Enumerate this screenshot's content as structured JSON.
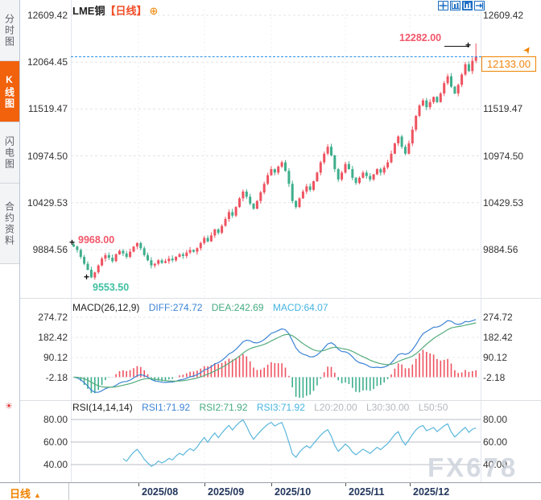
{
  "watermark": "FX678",
  "header": {
    "symbol": "LME铜",
    "period_tag": "【日线】",
    "plus_icon": "⊕"
  },
  "sidebar": {
    "tabs": [
      {
        "label": "分时图",
        "selected": false
      },
      {
        "label": "K线图",
        "selected": true
      },
      {
        "label": "闪电图",
        "selected": false
      },
      {
        "label": "合约资料",
        "selected": false
      }
    ]
  },
  "toolbar": {
    "icons": [
      "crosshair-move",
      "scale-chart",
      "scale-chart-active",
      "exit-chart"
    ]
  },
  "main_chart": {
    "left_axis": [
      "12609.42",
      "12064.45",
      "11519.47",
      "10974.50",
      "10429.53",
      "9884.56"
    ],
    "right_axis": [
      "12609.42",
      "12064.45",
      "11519.47",
      "10974.50",
      "10429.53",
      "9884.56"
    ]
  },
  "annotations": {
    "period_high": "12282.00",
    "start_high": "9968.00",
    "start_low": "9553.50",
    "last_price": "12133.00"
  },
  "macd": {
    "title": "MACD(26,12,9)",
    "diff_label": "DIFF:274.72",
    "dea_label": "DEA:242.69",
    "macd_label": "MACD:64.07",
    "axis": [
      "274.72",
      "182.42",
      "90.12",
      "-2.18"
    ]
  },
  "rsi": {
    "title": "RSI(14,14,14)",
    "rsi1_label": "RSI1:71.92",
    "rsi2_label": "RSI2:71.92",
    "rsi3_label": "RSI3:71.92",
    "l20_label": "L20:20.00",
    "l30_label": "L30:30.00",
    "l50_label": "L50:50",
    "axis": [
      "80.00",
      "60.00",
      "40.00"
    ]
  },
  "bottom_bar": {
    "period": "日线",
    "arrow": "▲",
    "months": [
      "2025/08",
      "2025/09",
      "2025/10",
      "2025/11",
      "2025/12"
    ]
  },
  "colors": {
    "up_candle": "#ee5360",
    "down_candle": "#3eae8c",
    "diff_line": "#3d84d6",
    "dea_line": "#56ad7c",
    "rsi_line": "#5ab7dc",
    "accent_orange": "#f08300",
    "tab_selected": "#f2610c",
    "last_price_line": "#2e8fe6",
    "high_label": "#f2566a",
    "low_label": "#3fbfa0"
  },
  "chart_data": {
    "type": "candlestick",
    "title": "LME铜 日线 with MACD(26,12,9) and RSI(14,14,14)",
    "x_months": [
      "2025/08",
      "2025/09",
      "2025/10",
      "2025/11",
      "2025/12"
    ],
    "y_ticks": [
      12609.42,
      12064.45,
      11519.47,
      10974.5,
      10429.53,
      9884.56
    ],
    "last_price": 12133.0,
    "period_high": 12282.0,
    "early_high": 9968.0,
    "early_low": 9553.5,
    "first_open": 9945,
    "closes": [
      9920,
      9880,
      9800,
      9720,
      9650,
      9560,
      9620,
      9700,
      9780,
      9820,
      9790,
      9750,
      9830,
      9870,
      9840,
      9800,
      9860,
      9920,
      9960,
      9900,
      9820,
      9760,
      9700,
      9720,
      9760,
      9730,
      9750,
      9780,
      9760,
      9800,
      9830,
      9810,
      9850,
      9880,
      9860,
      9900,
      9960,
      10020,
      9980,
      10050,
      10120,
      10080,
      10160,
      10240,
      10320,
      10280,
      10380,
      10480,
      10560,
      10500,
      10420,
      10360,
      10450,
      10550,
      10650,
      10750,
      10820,
      10780,
      10850,
      10900,
      10800,
      10650,
      10450,
      10380,
      10480,
      10560,
      10620,
      10580,
      10680,
      10780,
      10900,
      11000,
      11080,
      10980,
      10820,
      10700,
      10780,
      10880,
      10820,
      10720,
      10660,
      10720,
      10780,
      10740,
      10700,
      10760,
      10820,
      10780,
      10840,
      10900,
      11000,
      11120,
      11200,
      11080,
      11000,
      11120,
      11280,
      11440,
      11560,
      11620,
      11540,
      11600,
      11660,
      11600,
      11700,
      11820,
      11900,
      11780,
      11700,
      11800,
      11920,
      12040,
      11960,
      12080,
      12133
    ],
    "wick_overrides": {
      "0": {
        "high": 9968.0
      },
      "5": {
        "low": 9553.5
      },
      "114": {
        "high": 12282.0
      }
    },
    "indicators": {
      "macd": {
        "params": [
          26,
          12,
          9
        ],
        "diff": 274.72,
        "dea": 242.69,
        "macd": 64.07,
        "axis_ticks": [
          274.72,
          182.42,
          90.12,
          -2.18
        ]
      },
      "rsi": {
        "params": [
          14,
          14,
          14
        ],
        "rsi1": 71.92,
        "rsi2": 71.92,
        "rsi3": 71.92,
        "l20": 20.0,
        "l30": 30.0,
        "l50": 50,
        "axis_ticks": [
          80.0,
          60.0,
          40.0
        ]
      }
    }
  }
}
